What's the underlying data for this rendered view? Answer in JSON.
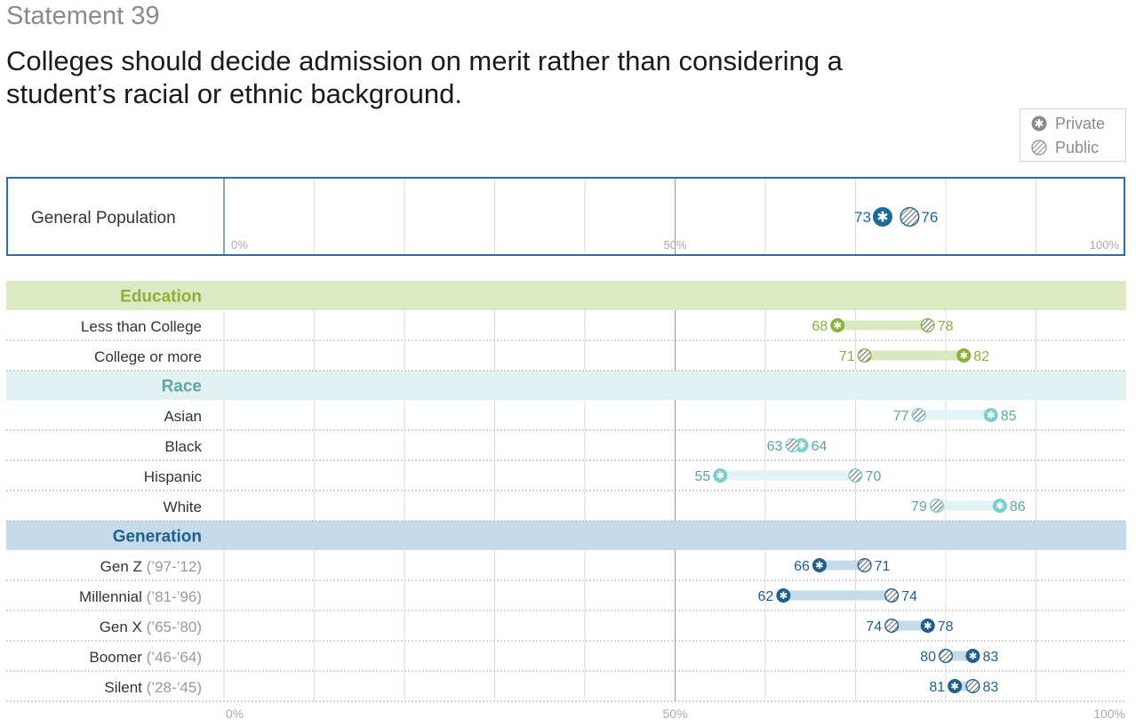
{
  "header": {
    "statement": "Statement 39",
    "title": "Colleges should decide admission on merit rather than considering a student’s racial or ethnic background."
  },
  "legend": {
    "private_label": "Private",
    "public_label": "Public",
    "private_icon": "star-in-circle-icon",
    "public_icon": "hatched-circle-icon"
  },
  "colors": {
    "general": "#1a6b9a",
    "education": "#8bb13a",
    "education_band": "#dde9c3",
    "education_bar": "#d9e8c0",
    "race": "#7ecdcd",
    "race_band": "#e2f2f2",
    "race_bar": "#e2f3f3",
    "race_text": "#5aa6a6",
    "generation": "#1f5f8b",
    "generation_band": "#c5dbea",
    "generation_bar": "#c5dbea"
  },
  "chart_data": {
    "type": "dumbbell",
    "xlim": [
      0,
      100
    ],
    "unit": "%",
    "ticks": [
      "0%",
      "50%",
      "100%"
    ],
    "general": {
      "label": "General Population",
      "private": 73,
      "public": 76,
      "private_text": "73",
      "public_text": "76"
    },
    "groups": [
      {
        "name": "Education",
        "key": "education",
        "rows": [
          {
            "label": "Less than College",
            "sub": "",
            "private": 68,
            "public": 78,
            "private_text": "68",
            "public_text": "78"
          },
          {
            "label": "College or more",
            "sub": "",
            "private": 82,
            "public": 71,
            "private_text": "82",
            "public_text": "71"
          }
        ]
      },
      {
        "name": "Race",
        "key": "race",
        "rows": [
          {
            "label": "Asian",
            "sub": "",
            "private": 85,
            "public": 77,
            "private_text": "85",
            "public_text": "77"
          },
          {
            "label": "Black",
            "sub": "",
            "private": 64,
            "public": 63,
            "private_text": "64",
            "public_text": "63"
          },
          {
            "label": "Hispanic",
            "sub": "",
            "private": 55,
            "public": 70,
            "private_text": "55",
            "public_text": "70"
          },
          {
            "label": "White",
            "sub": "",
            "private": 86,
            "public": 79,
            "private_text": "86",
            "public_text": "79"
          }
        ]
      },
      {
        "name": "Generation",
        "key": "generation",
        "rows": [
          {
            "label": "Gen Z",
            "sub": "(’97-’12)",
            "private": 66,
            "public": 71,
            "private_text": "66",
            "public_text": "71"
          },
          {
            "label": "Millennial",
            "sub": "(’81-’96)",
            "private": 62,
            "public": 74,
            "private_text": "62",
            "public_text": "74"
          },
          {
            "label": "Gen X",
            "sub": "(’65-’80)",
            "private": 78,
            "public": 74,
            "private_text": "78",
            "public_text": "74"
          },
          {
            "label": "Boomer",
            "sub": "(’46-’64)",
            "private": 83,
            "public": 80,
            "private_text": "83",
            "public_text": "80"
          },
          {
            "label": "Silent",
            "sub": "(’28-’45)",
            "private": 81,
            "public": 83,
            "private_text": "81",
            "public_text": "83"
          }
        ]
      }
    ]
  }
}
